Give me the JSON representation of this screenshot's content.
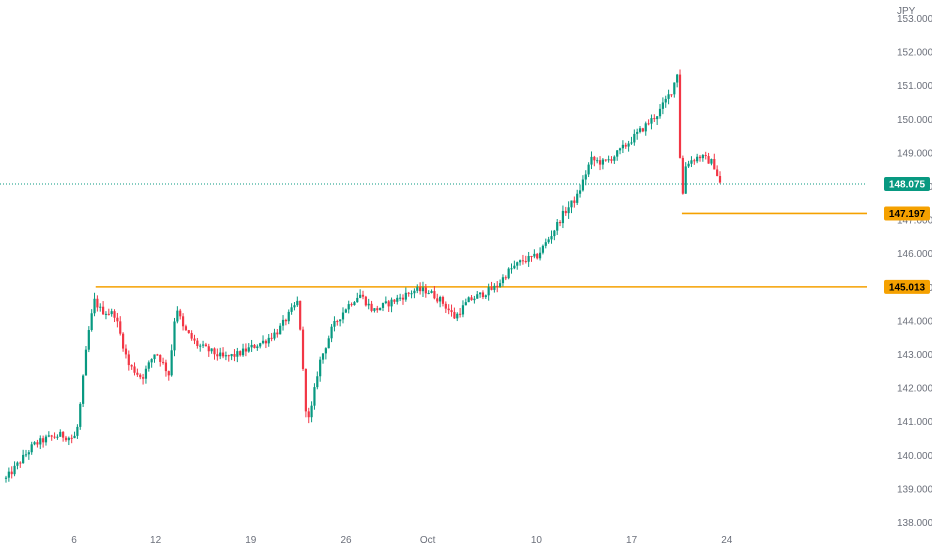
{
  "chart_data": {
    "type": "candlestick",
    "currency": "JPY",
    "ylim": [
      138.0,
      153.0
    ],
    "y_ticks": [
      "153.000",
      "152.000",
      "151.000",
      "150.000",
      "149.000",
      "148.000",
      "147.000",
      "146.000",
      "145.000",
      "144.000",
      "143.000",
      "142.000",
      "141.000",
      "140.000",
      "139.000",
      "138.000"
    ],
    "x_ticks": [
      "6",
      "12",
      "19",
      "26",
      "Oct",
      "10",
      "17",
      "24"
    ],
    "x_tick_days": [
      4,
      10,
      17,
      24,
      30,
      38,
      45,
      52
    ],
    "day_range": [
      -1,
      57
    ],
    "grid": false,
    "colors": {
      "up": "#089981",
      "down": "#f23645",
      "level": "#f5a100",
      "last": "#089981"
    },
    "last_price": {
      "value": 148.075,
      "label": "148.075"
    },
    "levels": [
      {
        "value": 145.013,
        "label": "145.013",
        "start_day": 5.6
      },
      {
        "value": 147.197,
        "label": "147.197",
        "start_day": 48.7
      }
    ],
    "anchors": [
      [
        -1.0,
        139.3
      ],
      [
        0.0,
        139.8
      ],
      [
        1.0,
        140.3
      ],
      [
        2.0,
        140.5
      ],
      [
        3.0,
        140.6
      ],
      [
        4.0,
        140.5
      ],
      [
        4.3,
        140.9
      ],
      [
        5.0,
        143.5
      ],
      [
        5.5,
        144.6
      ],
      [
        6.0,
        144.3
      ],
      [
        7.0,
        144.2
      ],
      [
        8.0,
        142.7
      ],
      [
        9.0,
        142.3
      ],
      [
        10.0,
        143.1
      ],
      [
        11.0,
        142.4
      ],
      [
        11.5,
        144.5
      ],
      [
        12.0,
        143.8
      ],
      [
        13.0,
        143.3
      ],
      [
        14.0,
        143.1
      ],
      [
        15.0,
        142.9
      ],
      [
        16.0,
        143.0
      ],
      [
        17.0,
        143.2
      ],
      [
        18.0,
        143.4
      ],
      [
        19.0,
        143.7
      ],
      [
        20.0,
        144.3
      ],
      [
        20.5,
        144.6
      ],
      [
        21.0,
        141.5
      ],
      [
        21.3,
        141.0
      ],
      [
        22.0,
        142.7
      ],
      [
        23.0,
        143.8
      ],
      [
        24.0,
        144.4
      ],
      [
        25.0,
        144.8
      ],
      [
        26.0,
        144.3
      ],
      [
        27.0,
        144.5
      ],
      [
        28.0,
        144.7
      ],
      [
        29.0,
        144.9
      ],
      [
        30.0,
        144.9
      ],
      [
        31.0,
        144.6
      ],
      [
        32.0,
        144.1
      ],
      [
        33.0,
        144.6
      ],
      [
        34.0,
        144.8
      ],
      [
        35.0,
        145.0
      ],
      [
        36.0,
        145.5
      ],
      [
        37.0,
        145.8
      ],
      [
        38.0,
        145.9
      ],
      [
        39.0,
        146.5
      ],
      [
        40.0,
        147.2
      ],
      [
        41.0,
        147.7
      ],
      [
        42.0,
        148.8
      ],
      [
        43.0,
        148.7
      ],
      [
        44.0,
        149.0
      ],
      [
        45.0,
        149.4
      ],
      [
        46.0,
        149.8
      ],
      [
        47.0,
        150.2
      ],
      [
        48.0,
        150.9
      ],
      [
        48.5,
        151.6
      ],
      [
        48.6,
        147.1
      ],
      [
        49.0,
        148.7
      ],
      [
        50.0,
        148.9
      ],
      [
        51.0,
        148.7
      ],
      [
        51.5,
        148.1
      ]
    ]
  }
}
